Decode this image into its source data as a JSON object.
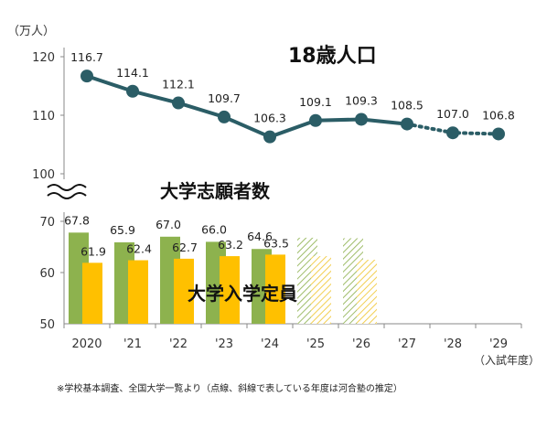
{
  "chart_data": {
    "type": "bar+line",
    "units": "（万人）",
    "x_categories": [
      "2020",
      "'21",
      "'22",
      "'23",
      "'24",
      "'25",
      "'26",
      "'27",
      "'28",
      "'29"
    ],
    "x_suffix": "（入試年度）",
    "y_ticks_upper": [
      "120",
      "110",
      "100"
    ],
    "y_ticks_lower": [
      "70",
      "60",
      "50"
    ],
    "line_series": {
      "name": "18歳人口",
      "values": [
        116.7,
        114.1,
        112.1,
        109.7,
        106.3,
        109.1,
        109.3,
        108.5,
        107.0,
        106.8
      ],
      "value_labels": [
        "116.7",
        "114.1",
        "112.1",
        "109.7",
        "106.3",
        "109.1",
        "109.3",
        "108.5",
        "107.0",
        "106.8"
      ],
      "estimated_from_index": 8,
      "color": "#2b5d66",
      "ylim": [
        100,
        120
      ]
    },
    "bar_series": [
      {
        "name": "大学志願者数",
        "values": [
          67.8,
          65.9,
          67.0,
          66.0,
          64.6,
          66.8,
          66.7
        ],
        "value_labels": [
          "67.8",
          "65.9",
          "67.0",
          "66.0",
          "64.6",
          "",
          ""
        ],
        "estimated_from_index": 5,
        "color": "#8db24e"
      },
      {
        "name": "大学入学定員",
        "values": [
          61.9,
          62.4,
          62.7,
          63.2,
          63.5,
          63.2,
          62.5
        ],
        "value_labels": [
          "61.9",
          "62.4",
          "62.7",
          "63.2",
          "63.5",
          "",
          ""
        ],
        "estimated_from_index": 5,
        "color": "#ffc000"
      }
    ],
    "bar_ylim": [
      50,
      70
    ],
    "axis_break": true,
    "note": "※学校基本調査、全国大学一覧より（点線、斜線で表している年度は河合塾の推定）"
  }
}
